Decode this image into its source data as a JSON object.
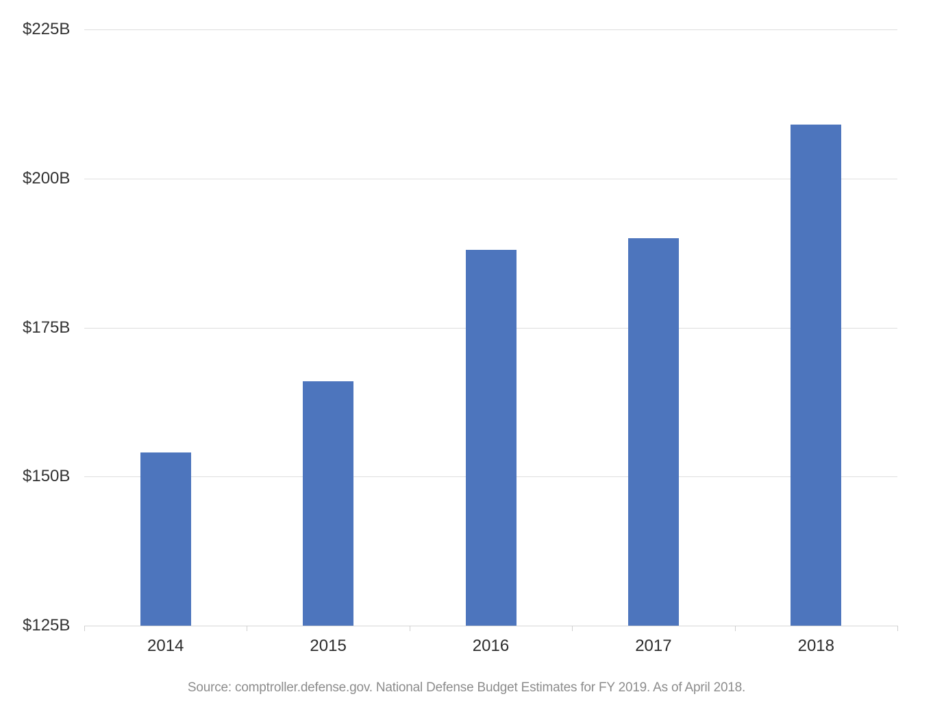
{
  "chart_data": {
    "type": "bar",
    "title": "",
    "xlabel": "",
    "ylabel": "",
    "categories": [
      "2014",
      "2015",
      "2016",
      "2017",
      "2018"
    ],
    "values": [
      154,
      166,
      188,
      190,
      209
    ],
    "value_unit": "USD billions",
    "ylim": [
      125,
      225
    ],
    "y_ticks": [
      {
        "value": 125,
        "label": "$125B"
      },
      {
        "value": 150,
        "label": "$150B"
      },
      {
        "value": 175,
        "label": "$175B"
      },
      {
        "value": 200,
        "label": "$200B"
      },
      {
        "value": 225,
        "label": "$225B"
      }
    ],
    "grid": "horizontal",
    "legend": "none",
    "colors": {
      "bar": "#4d75bd",
      "gridline": "#dedede",
      "axis_line": "#d4d4d4",
      "tick": "#cfcfcf",
      "y_label": "#333333",
      "x_label": "#2b2b2b",
      "source_text": "#8c8c8c",
      "background": "#ffffff"
    }
  },
  "source_note": "Source: comptroller.defense.gov. National Defense Budget Estimates for FY 2019. As of April 2018."
}
